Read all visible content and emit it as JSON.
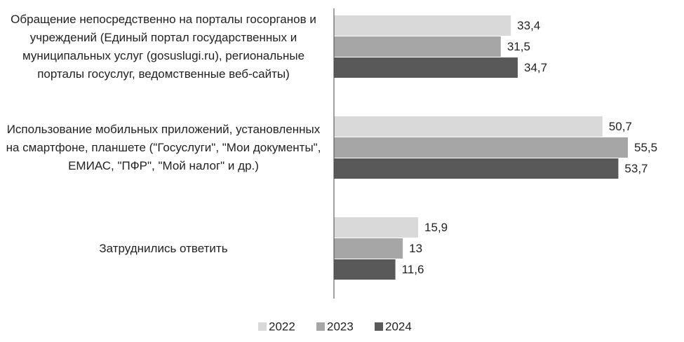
{
  "chart_data": {
    "type": "bar",
    "orientation": "horizontal",
    "categories": [
      "Обращение непосредственно на порталы госорганов и учреждений (Единый портал государственных и муниципальных услуг (gosuslugi.ru), региональные порталы госуслуг, ведомственные веб-сайты)",
      "Использование мобильных приложений, установленных на смартфоне, планшете (\"Госуслуги\", \"Мои документы\", ЕМИАС, \"ПФР\", \"Мой налог\" и др.)",
      "Затруднились ответить"
    ],
    "series": [
      {
        "name": "2022",
        "color": "#d9d9d9",
        "values": [
          33.4,
          50.7,
          15.9
        ],
        "value_labels": [
          "33,4",
          "50,7",
          "15,9"
        ]
      },
      {
        "name": "2023",
        "color": "#a6a6a6",
        "values": [
          31.5,
          55.5,
          13
        ],
        "value_labels": [
          "31,5",
          "55,5",
          "13"
        ]
      },
      {
        "name": "2024",
        "color": "#595959",
        "values": [
          34.7,
          53.7,
          11.6
        ],
        "value_labels": [
          "34,7",
          "53,7",
          "11,6"
        ]
      }
    ],
    "legend": "bottom"
  }
}
